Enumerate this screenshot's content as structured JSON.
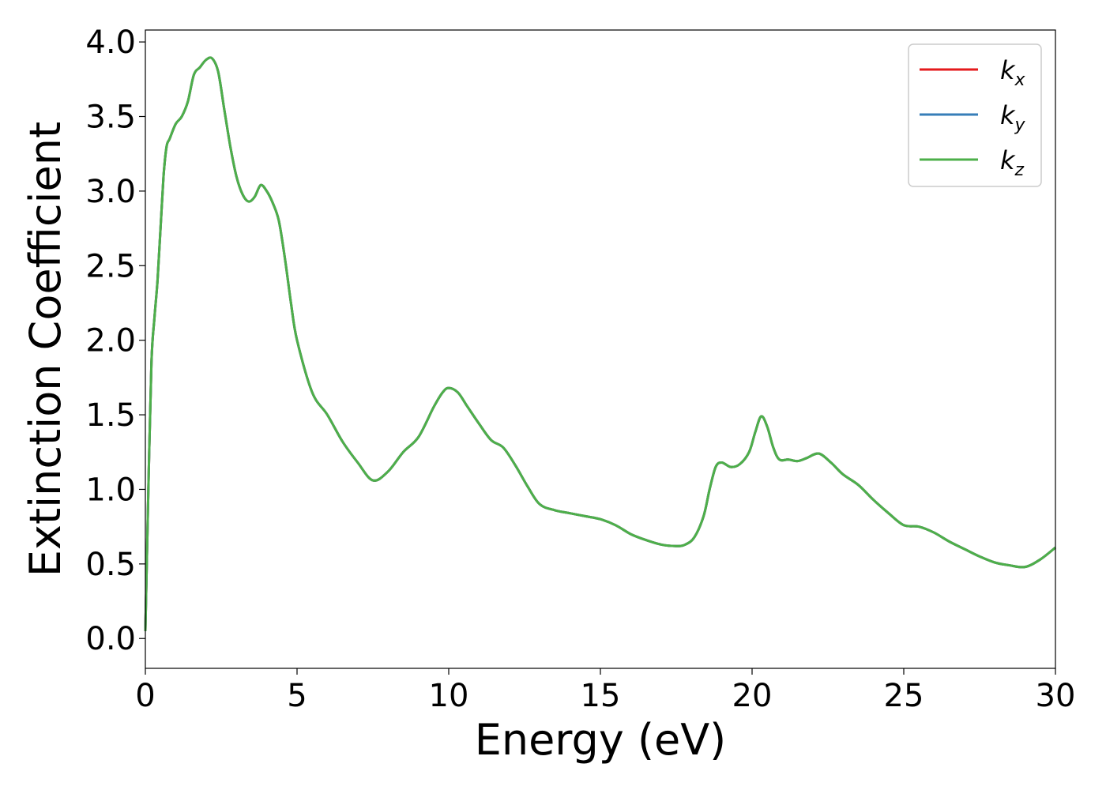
{
  "chart_data": {
    "type": "line",
    "title": "",
    "xlabel": "Energy (eV)",
    "ylabel": "Extinction Coefficient",
    "xlim": [
      0,
      30
    ],
    "ylim": [
      -0.2,
      4.08
    ],
    "xticks": [
      0,
      5,
      10,
      15,
      20,
      25,
      30
    ],
    "yticks": [
      0.0,
      0.5,
      1.0,
      1.5,
      2.0,
      2.5,
      3.0,
      3.5,
      4.0
    ],
    "xtick_labels": [
      "0",
      "5",
      "10",
      "15",
      "20",
      "25",
      "30"
    ],
    "ytick_labels": [
      "0.0",
      "0.5",
      "1.0",
      "1.5",
      "2.0",
      "2.5",
      "3.0",
      "3.5",
      "4.0"
    ],
    "grid": false,
    "legend_position": "top-right",
    "x": [
      0,
      0.1,
      0.2,
      0.3,
      0.4,
      0.5,
      0.6,
      0.7,
      0.8,
      1.0,
      1.2,
      1.4,
      1.6,
      1.8,
      2.0,
      2.2,
      2.4,
      2.6,
      2.8,
      3.0,
      3.2,
      3.4,
      3.6,
      3.8,
      4.0,
      4.2,
      4.4,
      4.6,
      4.8,
      5.0,
      5.5,
      6.0,
      6.5,
      7.0,
      7.5,
      8.0,
      8.5,
      9.0,
      9.5,
      9.8,
      10.0,
      10.3,
      10.6,
      11.0,
      11.4,
      11.8,
      12.2,
      12.6,
      13.0,
      13.5,
      14.0,
      14.5,
      15.0,
      15.5,
      16.0,
      16.5,
      17.0,
      17.5,
      17.8,
      18.1,
      18.4,
      18.6,
      18.8,
      19.0,
      19.3,
      19.6,
      19.9,
      20.1,
      20.3,
      20.5,
      20.7,
      20.9,
      21.2,
      21.5,
      21.8,
      22.2,
      22.6,
      23.0,
      23.5,
      24.0,
      24.5,
      25.0,
      25.5,
      26.0,
      26.5,
      27.0,
      27.5,
      28.0,
      28.5,
      29.0,
      29.5,
      30.0
    ],
    "series": [
      {
        "name": "k_x",
        "color": "#e41a1c",
        "values": [
          0.05,
          1.0,
          1.85,
          2.15,
          2.4,
          2.75,
          3.1,
          3.3,
          3.35,
          3.45,
          3.5,
          3.6,
          3.78,
          3.83,
          3.88,
          3.89,
          3.8,
          3.55,
          3.3,
          3.1,
          2.98,
          2.93,
          2.96,
          3.04,
          3.0,
          2.92,
          2.8,
          2.55,
          2.25,
          2.0,
          1.65,
          1.5,
          1.32,
          1.18,
          1.06,
          1.12,
          1.25,
          1.35,
          1.55,
          1.65,
          1.68,
          1.65,
          1.56,
          1.44,
          1.33,
          1.28,
          1.16,
          1.02,
          0.9,
          0.86,
          0.84,
          0.82,
          0.8,
          0.76,
          0.7,
          0.66,
          0.63,
          0.62,
          0.63,
          0.68,
          0.82,
          1.0,
          1.15,
          1.18,
          1.15,
          1.17,
          1.25,
          1.38,
          1.49,
          1.42,
          1.28,
          1.2,
          1.2,
          1.19,
          1.21,
          1.24,
          1.18,
          1.1,
          1.03,
          0.93,
          0.84,
          0.76,
          0.75,
          0.71,
          0.65,
          0.6,
          0.55,
          0.51,
          0.49,
          0.48,
          0.53,
          0.61
        ]
      },
      {
        "name": "k_y",
        "color": "#377eb8",
        "values": [
          0.05,
          1.0,
          1.85,
          2.15,
          2.4,
          2.75,
          3.1,
          3.3,
          3.35,
          3.45,
          3.5,
          3.6,
          3.78,
          3.83,
          3.88,
          3.89,
          3.8,
          3.55,
          3.3,
          3.1,
          2.98,
          2.93,
          2.96,
          3.04,
          3.0,
          2.92,
          2.8,
          2.55,
          2.25,
          2.0,
          1.65,
          1.5,
          1.32,
          1.18,
          1.06,
          1.12,
          1.25,
          1.35,
          1.55,
          1.65,
          1.68,
          1.65,
          1.56,
          1.44,
          1.33,
          1.28,
          1.16,
          1.02,
          0.9,
          0.86,
          0.84,
          0.82,
          0.8,
          0.76,
          0.7,
          0.66,
          0.63,
          0.62,
          0.63,
          0.68,
          0.82,
          1.0,
          1.15,
          1.18,
          1.15,
          1.17,
          1.25,
          1.38,
          1.49,
          1.42,
          1.28,
          1.2,
          1.2,
          1.19,
          1.21,
          1.24,
          1.18,
          1.1,
          1.03,
          0.93,
          0.84,
          0.76,
          0.75,
          0.71,
          0.65,
          0.6,
          0.55,
          0.51,
          0.49,
          0.48,
          0.53,
          0.61
        ]
      },
      {
        "name": "k_z",
        "color": "#4daf4a",
        "values": [
          0.05,
          1.0,
          1.85,
          2.15,
          2.4,
          2.75,
          3.1,
          3.3,
          3.35,
          3.45,
          3.5,
          3.6,
          3.78,
          3.83,
          3.88,
          3.89,
          3.8,
          3.55,
          3.3,
          3.1,
          2.98,
          2.93,
          2.96,
          3.04,
          3.0,
          2.92,
          2.8,
          2.55,
          2.25,
          2.0,
          1.65,
          1.5,
          1.32,
          1.18,
          1.06,
          1.12,
          1.25,
          1.35,
          1.55,
          1.65,
          1.68,
          1.65,
          1.56,
          1.44,
          1.33,
          1.28,
          1.16,
          1.02,
          0.9,
          0.86,
          0.84,
          0.82,
          0.8,
          0.76,
          0.7,
          0.66,
          0.63,
          0.62,
          0.63,
          0.68,
          0.82,
          1.0,
          1.15,
          1.18,
          1.15,
          1.17,
          1.25,
          1.38,
          1.49,
          1.42,
          1.28,
          1.2,
          1.2,
          1.19,
          1.21,
          1.24,
          1.18,
          1.1,
          1.03,
          0.93,
          0.84,
          0.76,
          0.75,
          0.71,
          0.65,
          0.6,
          0.55,
          0.51,
          0.49,
          0.48,
          0.53,
          0.61
        ]
      }
    ],
    "legend": [
      {
        "base": "k",
        "sub": "x",
        "color": "#e41a1c"
      },
      {
        "base": "k",
        "sub": "y",
        "color": "#377eb8"
      },
      {
        "base": "k",
        "sub": "z",
        "color": "#4daf4a"
      }
    ]
  }
}
